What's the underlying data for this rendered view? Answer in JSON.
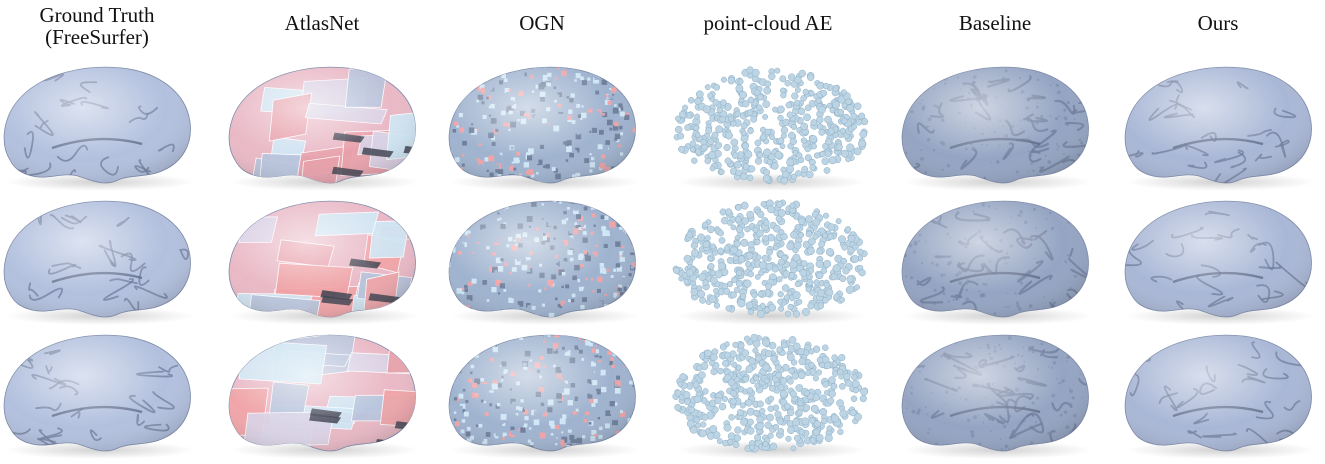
{
  "figure": {
    "columns": [
      {
        "id": "gt",
        "label_lines": [
          "Ground Truth",
          "(FreeSurfer)"
        ],
        "method": "freesurfer",
        "base_color": "#b2c0de"
      },
      {
        "id": "atlasnet",
        "label_lines": [
          "AtlasNet"
        ],
        "method": "atlasnet",
        "base_color": "#e9b9c6"
      },
      {
        "id": "ogn",
        "label_lines": [
          "OGN"
        ],
        "method": "ogn",
        "base_color": "#9fb3cf"
      },
      {
        "id": "pcae",
        "label_lines": [
          "point-cloud AE"
        ],
        "method": "pointcloud",
        "base_color": "#bcd4e4"
      },
      {
        "id": "baseline",
        "label_lines": [
          "Baseline"
        ],
        "method": "baseline",
        "base_color": "#94a4c2"
      },
      {
        "id": "ours",
        "label_lines": [
          "Ours"
        ],
        "method": "ours",
        "base_color": "#a9b7d6"
      }
    ],
    "rows": 3,
    "accent_colors": {
      "pink": "#f0a3a6",
      "light_blue": "#cfe6f5",
      "lavender": "#d9d3e6",
      "dark_patch": "#3e4250"
    }
  }
}
